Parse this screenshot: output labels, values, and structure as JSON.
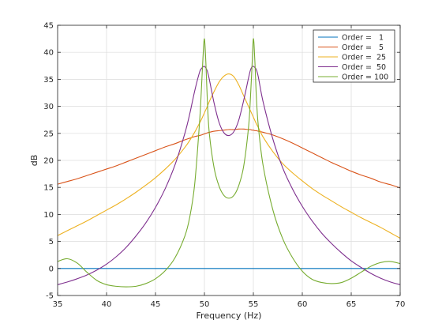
{
  "chart_data": {
    "type": "line",
    "title": "",
    "xlabel": "Frequency (Hz)",
    "ylabel": "dB",
    "xlim": [
      35,
      70
    ],
    "ylim": [
      -5,
      45
    ],
    "xticks": [
      35,
      40,
      45,
      50,
      55,
      60,
      65,
      70
    ],
    "yticks": [
      -5,
      0,
      5,
      10,
      15,
      20,
      25,
      30,
      35,
      40,
      45
    ],
    "grid": true,
    "legend_position": "top-right",
    "x": [
      35,
      36,
      37,
      38,
      39,
      40,
      41,
      42,
      43,
      44,
      45,
      46,
      47,
      48,
      48.5,
      49,
      49.5,
      49.7,
      49.85,
      50,
      50.15,
      50.3,
      50.5,
      51,
      51.5,
      52,
      52.5,
      53,
      53.5,
      54,
      54.5,
      54.7,
      54.85,
      55,
      55.15,
      55.3,
      55.5,
      56,
      57,
      58,
      59,
      60,
      61,
      62,
      63,
      64,
      65,
      66,
      67,
      68,
      69,
      70
    ],
    "series": [
      {
        "name": "Order =   1",
        "color": "#0072bd",
        "values": [
          0,
          0,
          0,
          0,
          0,
          0,
          0,
          0,
          0,
          0,
          0,
          0,
          0,
          0,
          0,
          0,
          0,
          0,
          0,
          0,
          0,
          0,
          0,
          0,
          0,
          0,
          0,
          0,
          0,
          0,
          0,
          0,
          0,
          0,
          0,
          0,
          0,
          0,
          0,
          0,
          0,
          0,
          0,
          0,
          0,
          0,
          0,
          0,
          0,
          0,
          0,
          0
        ]
      },
      {
        "name": "Order =   5",
        "color": "#d95319",
        "values": [
          15.6,
          16.1,
          16.6,
          17.2,
          17.8,
          18.4,
          19.0,
          19.7,
          20.4,
          21.1,
          21.8,
          22.5,
          23.1,
          23.8,
          24.1,
          24.4,
          24.6,
          24.7,
          24.8,
          24.9,
          25.0,
          25.1,
          25.2,
          25.4,
          25.5,
          25.6,
          25.7,
          25.7,
          25.8,
          25.8,
          25.7,
          25.7,
          25.6,
          25.6,
          25.5,
          25.5,
          25.4,
          25.2,
          24.7,
          24.0,
          23.2,
          22.3,
          21.4,
          20.5,
          19.6,
          18.8,
          18.0,
          17.3,
          16.7,
          16.0,
          15.5,
          14.9
        ]
      },
      {
        "name": "Order =  25",
        "color": "#edb120",
        "values": [
          6.1,
          7.0,
          7.9,
          8.8,
          9.8,
          10.8,
          11.8,
          12.9,
          14.1,
          15.4,
          16.8,
          18.4,
          20.2,
          22.4,
          23.7,
          25.2,
          26.9,
          27.6,
          28.2,
          28.8,
          29.4,
          30.0,
          30.9,
          32.8,
          34.5,
          35.6,
          36.0,
          35.5,
          34.0,
          32.0,
          30.0,
          29.2,
          28.6,
          28.0,
          27.4,
          26.8,
          26.1,
          24.3,
          21.6,
          19.4,
          17.7,
          16.2,
          14.8,
          13.6,
          12.5,
          11.4,
          10.4,
          9.4,
          8.5,
          7.6,
          6.6,
          5.6
        ]
      },
      {
        "name": "Order =  50",
        "color": "#7e2f8e",
        "values": [
          -3.0,
          -2.5,
          -1.9,
          -1.2,
          -0.3,
          0.8,
          2.2,
          3.9,
          6.0,
          8.4,
          11.3,
          14.8,
          19.2,
          25.0,
          28.6,
          32.8,
          36.3,
          37.0,
          37.3,
          37.4,
          37.1,
          36.5,
          35.0,
          30.5,
          27.0,
          25.1,
          24.6,
          25.3,
          27.4,
          31.0,
          35.2,
          36.7,
          37.3,
          37.4,
          37.2,
          36.8,
          35.5,
          30.8,
          23.9,
          18.6,
          14.7,
          11.5,
          8.8,
          6.5,
          4.6,
          2.9,
          1.4,
          0.2,
          -0.9,
          -1.8,
          -2.5,
          -3.0
        ]
      },
      {
        "name": "Order = 100",
        "color": "#77ac30",
        "values": [
          1.3,
          1.8,
          1.0,
          -0.7,
          -2.2,
          -3.0,
          -3.3,
          -3.4,
          -3.3,
          -2.8,
          -1.9,
          -0.4,
          2.0,
          6.0,
          9.5,
          15.5,
          27.0,
          33.5,
          39.0,
          42.5,
          38.0,
          31.0,
          25.0,
          18.5,
          15.2,
          13.5,
          13.0,
          13.5,
          15.3,
          18.8,
          26.0,
          31.5,
          37.0,
          42.5,
          38.5,
          32.0,
          26.5,
          19.0,
          10.8,
          5.5,
          2.0,
          -0.5,
          -2.0,
          -2.6,
          -2.8,
          -2.6,
          -1.8,
          -0.7,
          0.4,
          1.1,
          1.3,
          0.9
        ]
      }
    ]
  }
}
